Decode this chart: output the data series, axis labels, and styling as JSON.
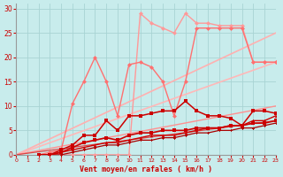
{
  "background_color": "#c8ecec",
  "grid_color": "#a8d4d4",
  "xlabel": "Vent moyen/en rafales ( km/h )",
  "xlabel_color": "#cc0000",
  "tick_color": "#cc0000",
  "xlim": [
    0,
    23
  ],
  "ylim": [
    0,
    31
  ],
  "yticks": [
    0,
    5,
    10,
    15,
    20,
    25,
    30
  ],
  "xticks": [
    0,
    1,
    2,
    3,
    4,
    5,
    6,
    7,
    8,
    9,
    10,
    11,
    12,
    13,
    14,
    15,
    16,
    17,
    18,
    19,
    20,
    21,
    22,
    23
  ],
  "lines": [
    {
      "x": [
        0,
        23
      ],
      "y": [
        0,
        25
      ],
      "color": "#ffb0b0",
      "lw": 1.2,
      "marker": null,
      "ms": 0,
      "zorder": 2
    },
    {
      "x": [
        0,
        23
      ],
      "y": [
        0,
        19
      ],
      "color": "#ffb8b8",
      "lw": 1.2,
      "marker": null,
      "ms": 0,
      "zorder": 2
    },
    {
      "x": [
        0,
        23
      ],
      "y": [
        0,
        10
      ],
      "color": "#ff9090",
      "lw": 1.0,
      "marker": null,
      "ms": 0,
      "zorder": 2
    },
    {
      "x": [
        0,
        23
      ],
      "y": [
        0,
        7
      ],
      "color": "#dd4444",
      "lw": 0.9,
      "marker": null,
      "ms": 0,
      "zorder": 2
    },
    {
      "x": [
        2,
        3,
        4,
        5,
        6,
        7,
        8,
        9,
        10,
        11,
        12,
        13,
        14,
        15,
        16,
        17,
        18,
        19,
        20,
        21,
        22,
        23
      ],
      "y": [
        0,
        0,
        0,
        0,
        0,
        0,
        0,
        0,
        0,
        29,
        27,
        26,
        25,
        29,
        27,
        27,
        26.5,
        26.5,
        26.5,
        19,
        19,
        19
      ],
      "color": "#ff9999",
      "lw": 1.0,
      "marker": "D",
      "ms": 2.5,
      "zorder": 3
    },
    {
      "x": [
        2,
        3,
        4,
        5,
        6,
        7,
        8,
        9,
        10,
        11,
        12,
        13,
        14,
        15,
        16,
        17,
        18,
        19,
        20,
        21,
        22,
        23
      ],
      "y": [
        0,
        0.5,
        1,
        10.5,
        15,
        20,
        15,
        8,
        18.5,
        19,
        18,
        15,
        8,
        15,
        26,
        26,
        26,
        26,
        26,
        19,
        19,
        19
      ],
      "color": "#ff7070",
      "lw": 1.0,
      "marker": "D",
      "ms": 2.5,
      "zorder": 3
    },
    {
      "x": [
        2,
        3,
        4,
        5,
        6,
        7,
        8,
        9,
        10,
        11,
        12,
        13,
        14,
        15,
        16,
        17,
        18,
        19,
        20,
        21,
        22,
        23
      ],
      "y": [
        0,
        0,
        0.5,
        1.5,
        2.5,
        3,
        3.5,
        3,
        4,
        4.5,
        4.5,
        5,
        5,
        5,
        5.5,
        5.5,
        5.5,
        6,
        6,
        6.5,
        6.5,
        7
      ],
      "color": "#cc0000",
      "lw": 1.2,
      "marker": "s",
      "ms": 2.5,
      "zorder": 5
    },
    {
      "x": [
        2,
        3,
        4,
        5,
        6,
        7,
        8,
        9,
        10,
        11,
        12,
        13,
        14,
        15,
        16,
        17,
        18,
        19,
        20,
        21,
        22,
        23
      ],
      "y": [
        0,
        0,
        1,
        2,
        4,
        4,
        7,
        5,
        8,
        8,
        8.5,
        9,
        9,
        11,
        9,
        8,
        8,
        7.5,
        6,
        9,
        9,
        8.5
      ],
      "color": "#cc0000",
      "lw": 1.1,
      "marker": "s",
      "ms": 2.5,
      "zorder": 5
    },
    {
      "x": [
        2,
        3,
        4,
        5,
        6,
        7,
        8,
        9,
        10,
        11,
        12,
        13,
        14,
        15,
        16,
        17,
        18,
        19,
        20,
        21,
        22,
        23
      ],
      "y": [
        0,
        0,
        0.5,
        1,
        1.5,
        2,
        2.5,
        2.5,
        3,
        3.5,
        4,
        4,
        4,
        4.5,
        5,
        5.5,
        5.5,
        6,
        6,
        7,
        7,
        8
      ],
      "color": "#cc0000",
      "lw": 1.0,
      "marker": "^",
      "ms": 2.5,
      "zorder": 5
    },
    {
      "x": [
        2,
        3,
        4,
        5,
        6,
        7,
        8,
        9,
        10,
        11,
        12,
        13,
        14,
        15,
        16,
        17,
        18,
        19,
        20,
        21,
        22,
        23
      ],
      "y": [
        0,
        0,
        0,
        0.5,
        1,
        1.5,
        2,
        2,
        2.5,
        3,
        3,
        3.5,
        3.5,
        4,
        4.5,
        4.5,
        5,
        5,
        5.5,
        5.5,
        6,
        6.5
      ],
      "color": "#aa0000",
      "lw": 0.9,
      "marker": "P",
      "ms": 2.0,
      "zorder": 4
    }
  ]
}
